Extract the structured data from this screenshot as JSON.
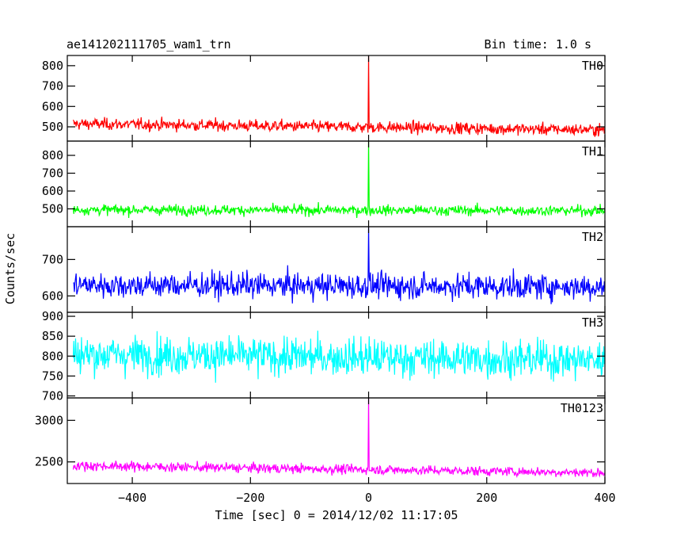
{
  "header": {
    "title": "ae141202111705_wam1_trn",
    "bin_time": "Bin time: 1.0 s"
  },
  "chart_data": {
    "type": "line",
    "xlabel": "Time [sec] 0 = 2014/12/02 11:17:05",
    "ylabel": "Counts/sec",
    "xlim": [
      -510,
      400
    ],
    "x_ticks": [
      -400,
      -200,
      0,
      200,
      400
    ],
    "x_tick_labels": [
      "−400",
      "−200",
      "0",
      "200",
      "400"
    ],
    "x_start": -500,
    "x_end": 400,
    "spike_x": 0,
    "panels": [
      {
        "name": "TH0",
        "color": "#ff0000",
        "ylim": [
          430,
          850
        ],
        "y_ticks": [
          500,
          600,
          700,
          800
        ],
        "y_tick_labels": [
          "500",
          "600",
          "700",
          "800"
        ],
        "baseline": 515,
        "end_baseline": 485,
        "noise_amplitude": 45,
        "spike_peak": 850
      },
      {
        "name": "TH1",
        "color": "#00ff00",
        "ylim": [
          400,
          880
        ],
        "y_ticks": [
          500,
          600,
          700,
          800
        ],
        "y_tick_labels": [
          "500",
          "600",
          "700",
          "800"
        ],
        "baseline": 495,
        "end_baseline": 490,
        "noise_amplitude": 45,
        "spike_peak": 880
      },
      {
        "name": "TH2",
        "color": "#0000ff",
        "ylim": [
          555,
          790
        ],
        "y_ticks": [
          600,
          700
        ],
        "y_tick_labels": [
          "600",
          "700"
        ],
        "baseline": 630,
        "end_baseline": 625,
        "noise_amplitude": 55,
        "spike_peak": 790
      },
      {
        "name": "TH3",
        "color": "#00ffff",
        "ylim": [
          695,
          910
        ],
        "y_ticks": [
          700,
          750,
          800,
          850,
          900
        ],
        "y_tick_labels": [
          "700",
          "750",
          "800",
          "850",
          "900"
        ],
        "baseline": 805,
        "end_baseline": 790,
        "noise_amplitude": 75,
        "spike_peak": null
      },
      {
        "name": "TH0123",
        "color": "#ff00ff",
        "ylim": [
          2240,
          3270
        ],
        "y_ticks": [
          2500,
          3000
        ],
        "y_tick_labels": [
          "2500",
          "3000"
        ],
        "baseline": 2455,
        "end_baseline": 2370,
        "noise_amplitude": 90,
        "spike_peak": 3270
      }
    ]
  }
}
